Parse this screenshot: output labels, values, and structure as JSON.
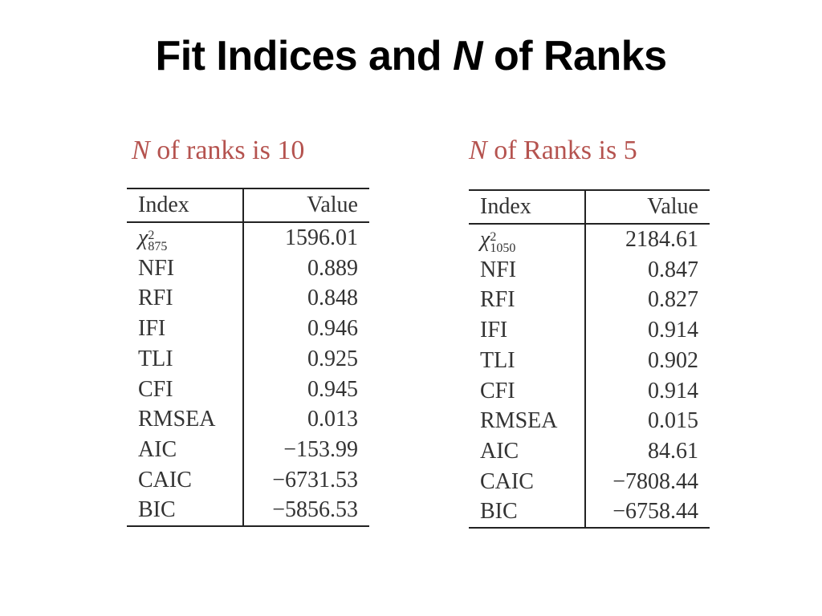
{
  "slide": {
    "title_prefix": "Fit Indices and ",
    "title_n": "N",
    "title_suffix": " of Ranks"
  },
  "left": {
    "caption_n": "N",
    "caption_text": " of ranks is 10",
    "header_index": "Index",
    "header_value": "Value",
    "chi_symbol": "χ",
    "chi_sup": "2",
    "chi_sub": "875",
    "chi_value": "1596.01",
    "rows": [
      {
        "index": "NFI",
        "value": "0.889"
      },
      {
        "index": "RFI",
        "value": "0.848"
      },
      {
        "index": "IFI",
        "value": "0.946"
      },
      {
        "index": "TLI",
        "value": "0.925"
      },
      {
        "index": "CFI",
        "value": "0.945"
      },
      {
        "index": "RMSEA",
        "value": "0.013"
      },
      {
        "index": "AIC",
        "value": "−153.99"
      },
      {
        "index": "CAIC",
        "value": "−6731.53"
      },
      {
        "index": "BIC",
        "value": "−5856.53"
      }
    ]
  },
  "right": {
    "caption_n": "N",
    "caption_text": " of Ranks is 5",
    "header_index": "Index",
    "header_value": "Value",
    "chi_symbol": "χ",
    "chi_sup": "2",
    "chi_sub": "1050",
    "chi_value": "2184.61",
    "rows": [
      {
        "index": "NFI",
        "value": "0.847"
      },
      {
        "index": "RFI",
        "value": "0.827"
      },
      {
        "index": "IFI",
        "value": "0.914"
      },
      {
        "index": "TLI",
        "value": "0.902"
      },
      {
        "index": "CFI",
        "value": "0.914"
      },
      {
        "index": "RMSEA",
        "value": "0.015"
      },
      {
        "index": "AIC",
        "value": "84.61"
      },
      {
        "index": "CAIC",
        "value": "−7808.44"
      },
      {
        "index": "BIC",
        "value": "−6758.44"
      }
    ]
  }
}
